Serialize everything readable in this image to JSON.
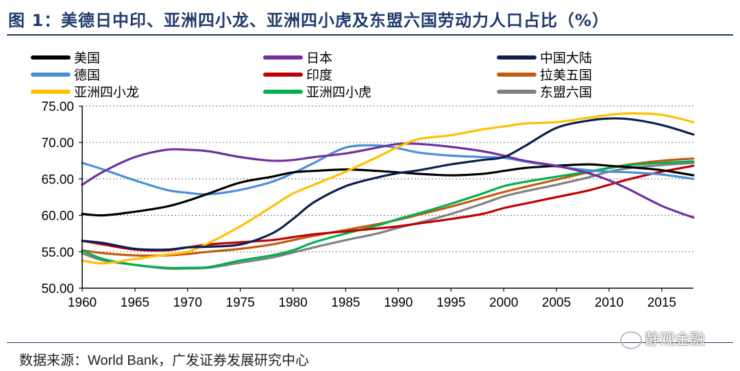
{
  "header": {
    "title": "图 1：美德日中印、亚洲四小龙、亚洲四小虎及东盟六国劳动力人口占比（%）"
  },
  "footer": {
    "source_label": "数据来源：",
    "source_value": "World Bank，广发证券发展研究中心"
  },
  "watermark": {
    "text": "静观金融"
  },
  "chart_data": {
    "type": "line",
    "title": "美德日中印、亚洲四小龙、亚洲四小虎及东盟六国劳动力人口占比（%）",
    "xlabel": "",
    "ylabel": "",
    "xlim": [
      1960,
      2018
    ],
    "ylim": [
      50,
      75
    ],
    "xticks": [
      1960,
      1965,
      1970,
      1975,
      1980,
      1985,
      1990,
      1995,
      2000,
      2005,
      2010,
      2015
    ],
    "yticks": [
      "50.00",
      "55.00",
      "60.00",
      "65.00",
      "70.00",
      "75.00"
    ],
    "grid": "horizontal dotted",
    "legend_position": "top",
    "x": [
      1960,
      1962,
      1965,
      1968,
      1970,
      1972,
      1975,
      1978,
      1980,
      1982,
      1985,
      1988,
      1990,
      1992,
      1995,
      1998,
      2000,
      2002,
      2005,
      2008,
      2010,
      2012,
      2015,
      2018
    ],
    "series": [
      {
        "name": "美国",
        "color": "#000000",
        "values": [
          60.2,
          60.0,
          60.5,
          61.2,
          62.0,
          63.0,
          64.5,
          65.3,
          65.9,
          66.1,
          66.3,
          66.1,
          65.9,
          65.7,
          65.5,
          65.7,
          66.1,
          66.5,
          66.8,
          67.0,
          66.8,
          66.6,
          66.2,
          65.5
        ]
      },
      {
        "name": "德国",
        "color": "#4a8fd4",
        "values": [
          67.2,
          66.3,
          64.8,
          63.5,
          63.1,
          62.9,
          63.5,
          64.6,
          65.8,
          67.2,
          69.3,
          69.6,
          69.2,
          68.6,
          68.2,
          68.0,
          67.9,
          67.4,
          66.7,
          66.2,
          66.0,
          65.9,
          65.6,
          65.0
        ]
      },
      {
        "name": "亚洲四小龙",
        "color": "#ffc000",
        "values": [
          53.8,
          53.4,
          54.0,
          54.6,
          55.0,
          56.2,
          58.5,
          61.2,
          63.0,
          64.2,
          66.0,
          68.0,
          69.4,
          70.5,
          71.0,
          71.8,
          72.2,
          72.6,
          72.8,
          73.4,
          73.8,
          74.0,
          73.8,
          72.8
        ]
      },
      {
        "name": "日本",
        "color": "#7030a0",
        "values": [
          64.2,
          66.0,
          68.0,
          69.0,
          69.0,
          68.8,
          68.0,
          67.5,
          67.6,
          68.0,
          68.5,
          69.3,
          69.8,
          69.8,
          69.4,
          68.8,
          68.2,
          67.5,
          66.8,
          65.8,
          64.8,
          63.5,
          61.3,
          59.7
        ]
      },
      {
        "name": "印度",
        "color": "#c00000",
        "values": [
          56.5,
          56.0,
          55.3,
          55.2,
          55.6,
          56.0,
          56.3,
          56.6,
          57.0,
          57.4,
          57.8,
          58.2,
          58.5,
          58.9,
          59.5,
          60.2,
          61.0,
          61.6,
          62.5,
          63.4,
          64.2,
          65.0,
          66.0,
          66.8
        ]
      },
      {
        "name": "亚洲四小虎",
        "color": "#00b050",
        "values": [
          55.2,
          54.0,
          53.2,
          52.8,
          52.8,
          52.9,
          53.8,
          54.5,
          55.2,
          56.3,
          57.5,
          58.6,
          59.5,
          60.3,
          61.6,
          63.0,
          64.0,
          64.6,
          65.3,
          66.0,
          66.5,
          66.9,
          67.2,
          67.4
        ]
      },
      {
        "name": "中国大陆",
        "color": "#0d1f4f",
        "values": [
          56.5,
          56.2,
          55.4,
          55.3,
          55.6,
          55.7,
          56.0,
          57.5,
          59.5,
          61.8,
          64.0,
          65.2,
          65.8,
          66.2,
          67.0,
          67.6,
          68.0,
          69.5,
          72.0,
          73.0,
          73.3,
          73.2,
          72.4,
          71.1
        ]
      },
      {
        "name": "拉美五国",
        "color": "#c55a11",
        "values": [
          55.2,
          54.8,
          54.5,
          54.5,
          54.7,
          55.0,
          55.4,
          56.0,
          56.6,
          57.2,
          58.0,
          58.8,
          59.4,
          60.1,
          61.2,
          62.4,
          63.2,
          63.9,
          64.9,
          65.9,
          66.5,
          67.0,
          67.5,
          67.8
        ]
      },
      {
        "name": "东盟六国",
        "color": "#808080",
        "values": [
          54.8,
          53.8,
          53.2,
          52.7,
          52.7,
          52.8,
          53.5,
          54.2,
          54.9,
          55.6,
          56.6,
          57.5,
          58.3,
          59.0,
          60.2,
          61.6,
          62.6,
          63.3,
          64.2,
          65.2,
          66.0,
          66.5,
          66.9,
          67.2
        ]
      }
    ]
  }
}
